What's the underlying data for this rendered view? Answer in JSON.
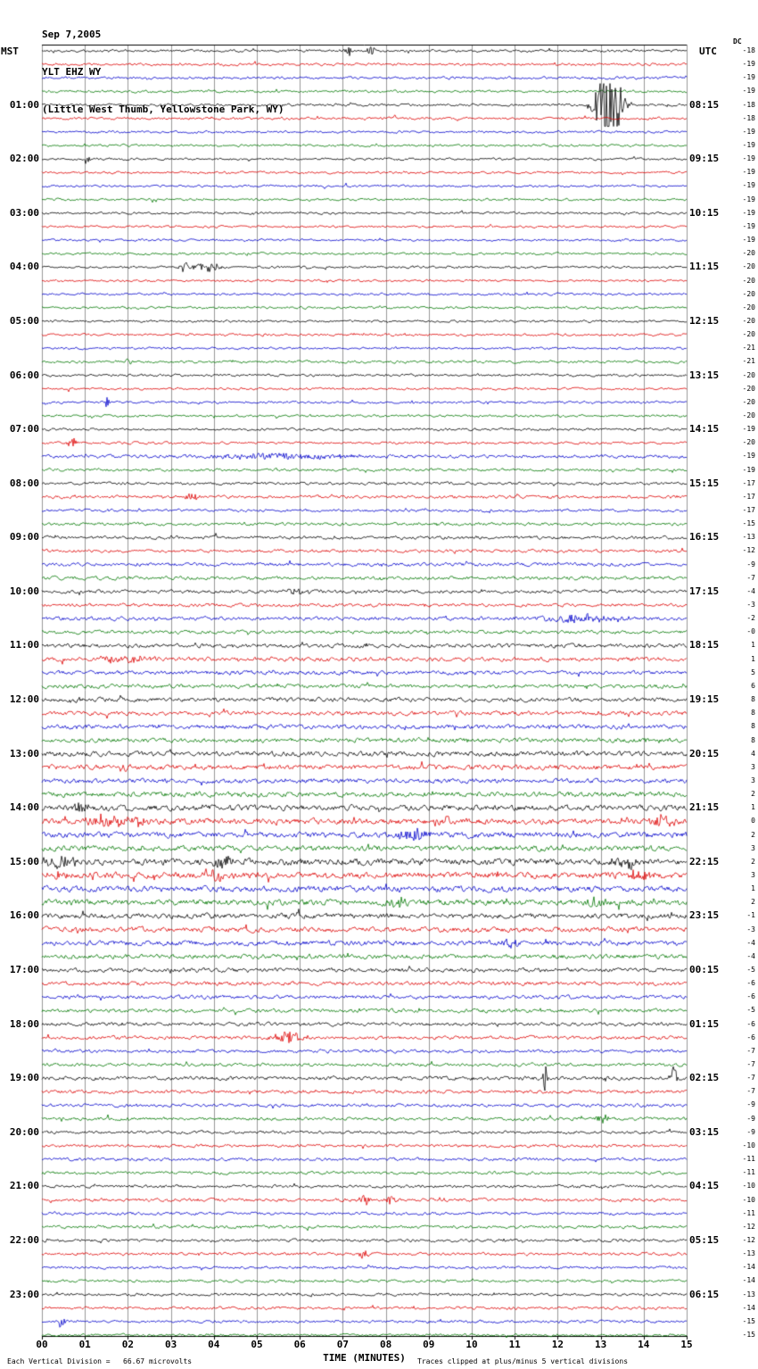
{
  "header": {
    "date": "Sep 7,2005",
    "station": "YLT EHZ WY",
    "location": "(Little West Thumb, Yellowstone Park, WY)"
  },
  "axes": {
    "left_time_label": "MST",
    "right_time_label": "UTC",
    "dc_label": "DC",
    "x_axis_title": "TIME (MINUTES)",
    "x_ticks": [
      "00",
      "01",
      "02",
      "03",
      "04",
      "05",
      "06",
      "07",
      "08",
      "09",
      "10",
      "11",
      "12",
      "13",
      "14",
      "15"
    ]
  },
  "footer": {
    "scale_note": "Each Vertical Division =   66.67 microvolts",
    "clip_note": "Traces clipped at plus/minus 5 vertical divisions"
  },
  "chart_data": {
    "type": "line",
    "x_unit": "minutes",
    "x_range": [
      0,
      15
    ],
    "minutes_per_row": 15,
    "rows_count": 96,
    "row_start_mst": "00:00",
    "grid_color": "#999999",
    "trace_colors_cycle": [
      "#000000",
      "#dd0000",
      "#0000cc",
      "#007700"
    ],
    "hour_labels": [
      {
        "row": 4,
        "mst": "01:00",
        "utc": "08:15"
      },
      {
        "row": 8,
        "mst": "02:00",
        "utc": "09:15"
      },
      {
        "row": 12,
        "mst": "03:00",
        "utc": "10:15"
      },
      {
        "row": 16,
        "mst": "04:00",
        "utc": "11:15"
      },
      {
        "row": 20,
        "mst": "05:00",
        "utc": "12:15"
      },
      {
        "row": 24,
        "mst": "06:00",
        "utc": "13:15"
      },
      {
        "row": 28,
        "mst": "07:00",
        "utc": "14:15"
      },
      {
        "row": 32,
        "mst": "08:00",
        "utc": "15:15"
      },
      {
        "row": 36,
        "mst": "09:00",
        "utc": "16:15"
      },
      {
        "row": 40,
        "mst": "10:00",
        "utc": "17:15"
      },
      {
        "row": 44,
        "mst": "11:00",
        "utc": "18:15"
      },
      {
        "row": 48,
        "mst": "12:00",
        "utc": "19:15"
      },
      {
        "row": 52,
        "mst": "13:00",
        "utc": "20:15"
      },
      {
        "row": 56,
        "mst": "14:00",
        "utc": "21:15"
      },
      {
        "row": 60,
        "mst": "15:00",
        "utc": "22:15"
      },
      {
        "row": 64,
        "mst": "16:00",
        "utc": "23:15"
      },
      {
        "row": 68,
        "mst": "17:00",
        "utc": "00:15"
      },
      {
        "row": 72,
        "mst": "18:00",
        "utc": "01:15"
      },
      {
        "row": 76,
        "mst": "19:00",
        "utc": "02:15"
      },
      {
        "row": 80,
        "mst": "20:00",
        "utc": "03:15"
      },
      {
        "row": 84,
        "mst": "21:00",
        "utc": "04:15"
      },
      {
        "row": 88,
        "mst": "22:00",
        "utc": "05:15"
      },
      {
        "row": 92,
        "mst": "23:00",
        "utc": "06:15"
      }
    ],
    "dc_offsets": [
      "-18",
      "-19",
      "-19",
      "-19",
      "-18",
      "-18",
      "-19",
      "-19",
      "-19",
      "-19",
      "-19",
      "-19",
      "-19",
      "-19",
      "-19",
      "-20",
      "-20",
      "-20",
      "-20",
      "-20",
      "-20",
      "-20",
      "-21",
      "-21",
      "-20",
      "-20",
      "-20",
      "-20",
      "-19",
      "-20",
      "-19",
      "-19",
      "-17",
      "-17",
      "-17",
      "-15",
      "-13",
      "-12",
      "-9",
      "-7",
      "-4",
      "-3",
      "-2",
      "-0",
      "1",
      "1",
      "5",
      "6",
      "8",
      "8",
      "8",
      "8",
      "4",
      "3",
      "3",
      "2",
      "1",
      "0",
      "2",
      "3",
      "2",
      "3",
      "1",
      "2",
      "-1",
      "-3",
      "-4",
      "-4",
      "-5",
      "-6",
      "-6",
      "-5",
      "-6",
      "-6",
      "-7",
      "-7",
      "-7",
      "-7",
      "-9",
      "-9",
      "-9",
      "-10",
      "-11",
      "-11",
      "-10",
      "-10",
      "-11",
      "-12",
      "-12",
      "-13",
      "-14",
      "-14",
      "-13",
      "-14",
      "-15",
      "-15"
    ],
    "row_amps": [
      1.1,
      1.1,
      1.1,
      1.1,
      1.1,
      1.1,
      1.0,
      1.0,
      1.0,
      1.0,
      1.0,
      1.0,
      1.0,
      1.0,
      1.0,
      1.0,
      1.0,
      1.0,
      1.0,
      1.0,
      1.0,
      1.0,
      1.0,
      1.1,
      1.1,
      1.0,
      1.0,
      1.0,
      1.1,
      1.1,
      1.4,
      1.2,
      1.2,
      1.3,
      1.2,
      1.3,
      1.4,
      1.4,
      1.5,
      1.5,
      1.5,
      1.4,
      1.6,
      1.5,
      1.7,
      1.8,
      1.7,
      1.7,
      1.8,
      1.8,
      1.9,
      1.9,
      2.1,
      2.1,
      2.0,
      2.2,
      2.4,
      2.5,
      2.4,
      2.3,
      2.7,
      2.7,
      2.5,
      2.5,
      2.2,
      2.2,
      2.1,
      2.0,
      1.8,
      1.7,
      1.6,
      1.6,
      1.5,
      1.5,
      1.4,
      1.4,
      1.7,
      1.5,
      1.4,
      1.4,
      1.3,
      1.3,
      1.3,
      1.3,
      1.3,
      1.4,
      1.3,
      1.3,
      1.3,
      1.3,
      1.2,
      1.2,
      1.2,
      1.2,
      1.2,
      1.1
    ],
    "events": [
      {
        "row": 0,
        "m": 7.15,
        "a": 6,
        "w": 0.12
      },
      {
        "row": 0,
        "m": 7.65,
        "a": 5,
        "w": 0.1
      },
      {
        "row": 4,
        "m": 13.2,
        "a": 45,
        "w": 0.3
      },
      {
        "row": 4,
        "m": 13.0,
        "a": 12,
        "w": 0.1
      },
      {
        "row": 8,
        "m": 1.05,
        "a": 8,
        "w": 0.06
      },
      {
        "row": 16,
        "m": 3.3,
        "a": 10,
        "w": 0.09
      },
      {
        "row": 16,
        "m": 3.85,
        "a": 5,
        "w": 0.3
      },
      {
        "row": 23,
        "m": 2.0,
        "a": 7,
        "w": 0.07
      },
      {
        "row": 26,
        "m": 1.5,
        "a": 9,
        "w": 0.05
      },
      {
        "row": 29,
        "m": 0.7,
        "a": 8,
        "w": 0.09
      },
      {
        "row": 30,
        "m": 5.6,
        "a": 3,
        "w": 1.6
      },
      {
        "row": 33,
        "m": 3.5,
        "a": 6,
        "w": 0.12
      },
      {
        "row": 40,
        "m": 5.9,
        "a": 4,
        "w": 0.25
      },
      {
        "row": 42,
        "m": 12.6,
        "a": 4,
        "w": 0.9
      },
      {
        "row": 45,
        "m": 1.9,
        "a": 5,
        "w": 0.5
      },
      {
        "row": 48,
        "m": 0.9,
        "a": 4,
        "w": 0.25
      },
      {
        "row": 53,
        "m": 1.95,
        "a": 7,
        "w": 0.12
      },
      {
        "row": 56,
        "m": 0.9,
        "a": 5,
        "w": 0.2
      },
      {
        "row": 57,
        "m": 1.5,
        "a": 7,
        "w": 0.45
      },
      {
        "row": 57,
        "m": 2.3,
        "a": 6,
        "w": 0.2
      },
      {
        "row": 57,
        "m": 9.5,
        "a": 6,
        "w": 0.25
      },
      {
        "row": 57,
        "m": 14.4,
        "a": 6,
        "w": 0.25
      },
      {
        "row": 58,
        "m": 8.6,
        "a": 8,
        "w": 0.35
      },
      {
        "row": 60,
        "m": 0.5,
        "a": 6,
        "w": 0.3
      },
      {
        "row": 60,
        "m": 4.2,
        "a": 5,
        "w": 0.3
      },
      {
        "row": 60,
        "m": 13.6,
        "a": 6,
        "w": 0.35
      },
      {
        "row": 61,
        "m": 0.35,
        "a": 7,
        "w": 0.2
      },
      {
        "row": 61,
        "m": 4.0,
        "a": 5,
        "w": 0.3
      },
      {
        "row": 61,
        "m": 13.9,
        "a": 5,
        "w": 0.3
      },
      {
        "row": 63,
        "m": 8.3,
        "a": 7,
        "w": 0.2
      },
      {
        "row": 63,
        "m": 12.9,
        "a": 6,
        "w": 0.25
      },
      {
        "row": 66,
        "m": 10.9,
        "a": 5,
        "w": 0.25
      },
      {
        "row": 73,
        "m": 5.7,
        "a": 7,
        "w": 0.35
      },
      {
        "row": 76,
        "m": 11.7,
        "a": 15,
        "w": 0.07
      },
      {
        "row": 76,
        "m": 14.7,
        "a": 15,
        "w": 0.09
      },
      {
        "row": 79,
        "m": 13.0,
        "a": 6,
        "w": 0.15
      },
      {
        "row": 85,
        "m": 7.5,
        "a": 7,
        "w": 0.12
      },
      {
        "row": 85,
        "m": 8.15,
        "a": 6,
        "w": 0.12
      },
      {
        "row": 89,
        "m": 7.5,
        "a": 4,
        "w": 0.15
      },
      {
        "row": 94,
        "m": 0.45,
        "a": 8,
        "w": 0.08
      }
    ]
  }
}
